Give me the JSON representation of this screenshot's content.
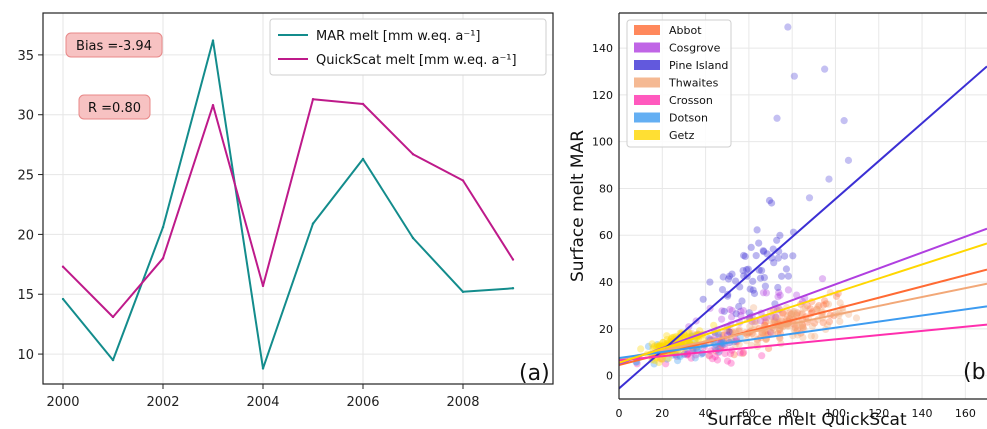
{
  "chart_data": [
    {
      "type": "line",
      "x": [
        2000,
        2001,
        2002,
        2003,
        2004,
        2005,
        2006,
        2007,
        2008,
        2009
      ],
      "series": [
        {
          "name": "MAR melt [mm w.eq. a⁻¹]",
          "color": "#138c8c",
          "values": [
            14.6,
            9.5,
            20.6,
            36.2,
            8.8,
            20.9,
            26.3,
            19.7,
            15.2,
            15.5
          ]
        },
        {
          "name": "QuickScat melt [mm w.eq. a⁻¹]",
          "color": "#be1a8a",
          "values": [
            17.3,
            13.1,
            18.0,
            30.8,
            15.7,
            31.3,
            30.9,
            26.7,
            24.5,
            17.9
          ]
        }
      ],
      "xlim": [
        1999.6,
        2009.8
      ],
      "ylim": [
        7.5,
        38.5
      ],
      "xticks": [
        "2000",
        "2002",
        "2004",
        "2006",
        "2008"
      ],
      "yticks": [
        "10",
        "15",
        "20",
        "25",
        "30",
        "35"
      ],
      "grid": true,
      "legend": "top-right",
      "annotations": {
        "bias": "Bias =-3.94",
        "r": "R =0.80"
      },
      "panel_label": "(a)"
    },
    {
      "type": "scatter",
      "xlabel": "Surface melt QuickScat",
      "ylabel": "Surface melt MAR",
      "xlim": [
        0,
        170
      ],
      "ylim": [
        -10,
        155
      ],
      "xticks": [
        "0",
        "20",
        "40",
        "60",
        "80",
        "100",
        "120",
        "140",
        "160"
      ],
      "yticks": [
        "0",
        "20",
        "40",
        "60",
        "80",
        "100",
        "120",
        "140"
      ],
      "grid": true,
      "legend": "top-left",
      "panel_label": "(b",
      "series": [
        {
          "name": "Abbot",
          "color": "#ff6a33",
          "fit": [
            0.24,
            4.5
          ]
        },
        {
          "name": "Cosgrove",
          "color": "#b03fe0",
          "fit": [
            0.34,
            5.0
          ]
        },
        {
          "name": "Pine Island",
          "color": "#3b2fd4",
          "fit": [
            0.81,
            -5.5
          ]
        },
        {
          "name": "Thwaites",
          "color": "#f2a878",
          "fit": [
            0.19,
            7.0
          ]
        },
        {
          "name": "Crosson",
          "color": "#ff2fae",
          "fit": [
            0.09,
            6.5
          ]
        },
        {
          "name": "Dotson",
          "color": "#3d9bf0",
          "fit": [
            0.13,
            7.5
          ]
        },
        {
          "name": "Getz",
          "color": "#ffd700",
          "fit": [
            0.3,
            5.5
          ]
        }
      ]
    }
  ]
}
